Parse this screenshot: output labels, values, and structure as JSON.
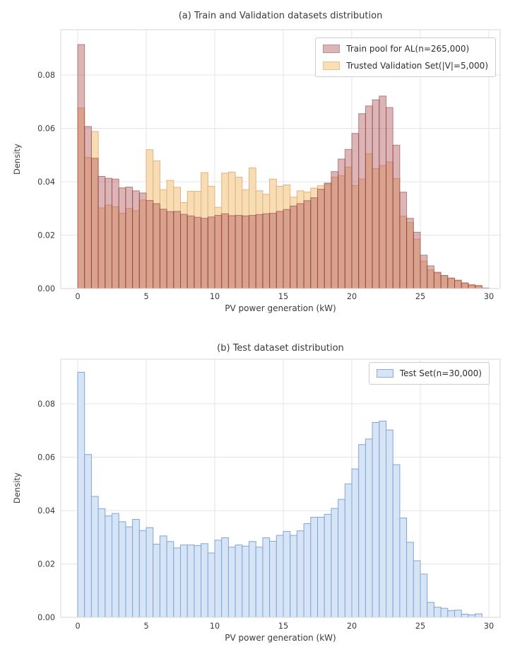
{
  "page": {
    "background": "#ffffff",
    "text_color": "#3a3a3a",
    "grid_color": "#e4e4e4",
    "border_color": "#d7d7d7"
  },
  "chart_data": [
    {
      "type": "bar",
      "subtype": "histogram",
      "title": "(a) Train and Validation datasets distribution",
      "xlabel": "PV power generation (kW)",
      "ylabel": "Density",
      "x_ticks": [
        0,
        5,
        10,
        15,
        20,
        25,
        30
      ],
      "y_ticks": [
        {
          "label": "0.00",
          "value": 0
        },
        {
          "label": "0.02",
          "value": 0.02
        },
        {
          "label": "0.04",
          "value": 0.04
        },
        {
          "label": "0.06",
          "value": 0.06
        },
        {
          "label": "0.08",
          "value": 0.08
        }
      ],
      "xlim": [
        -1.2,
        30.8
      ],
      "ylim": [
        0,
        0.097
      ],
      "grid": true,
      "legend_position": "upper right",
      "bin_start": 0,
      "bin_width": 0.5,
      "series": [
        {
          "name": "Train pool for AL(n=265,000)",
          "bar_fill": "rgba(178,90,95,0.45)",
          "bar_edge": "rgba(140,50,55,0.55)",
          "swatch_fill": "#dcb5b7",
          "swatch_edge": "#c18e92",
          "values": [
            0.0914,
            0.0607,
            0.0488,
            0.042,
            0.0413,
            0.041,
            0.0377,
            0.038,
            0.0366,
            0.0358,
            0.033,
            0.0318,
            0.0297,
            0.0288,
            0.0289,
            0.0278,
            0.0272,
            0.0267,
            0.0263,
            0.0268,
            0.0274,
            0.028,
            0.0273,
            0.0274,
            0.0272,
            0.0274,
            0.0277,
            0.028,
            0.0282,
            0.0289,
            0.0296,
            0.0309,
            0.0318,
            0.0329,
            0.034,
            0.0372,
            0.0395,
            0.0438,
            0.0485,
            0.0521,
            0.0581,
            0.0655,
            0.0684,
            0.0707,
            0.0721,
            0.0678,
            0.0537,
            0.0361,
            0.0263,
            0.0211,
            0.0125,
            0.0085,
            0.0061,
            0.0049,
            0.0038,
            0.003,
            0.002,
            0.0013,
            0.001,
            0.0002
          ]
        },
        {
          "name": "Trusted Validation Set(|V|=5,000)",
          "bar_fill": "#f7ddb3",
          "bar_edge": "#e6b17e",
          "swatch_fill": "#f8dfb6",
          "swatch_edge": "#e9c18c",
          "values": [
            0.0676,
            0.0491,
            0.0588,
            0.0302,
            0.0313,
            0.0306,
            0.0282,
            0.03,
            0.0292,
            0.0332,
            0.052,
            0.0478,
            0.037,
            0.0405,
            0.0379,
            0.0322,
            0.0364,
            0.0364,
            0.0434,
            0.0383,
            0.0304,
            0.0432,
            0.0436,
            0.0417,
            0.037,
            0.0452,
            0.0366,
            0.0353,
            0.041,
            0.0383,
            0.0388,
            0.0342,
            0.0366,
            0.0361,
            0.0376,
            0.0385,
            0.0392,
            0.0417,
            0.0423,
            0.0455,
            0.0386,
            0.041,
            0.0505,
            0.0449,
            0.0461,
            0.0474,
            0.0412,
            0.0271,
            0.0247,
            0.0185,
            0.0103,
            0.007,
            0.0058,
            0.0048,
            0.004,
            0.0032,
            0.0022,
            0.0015,
            0.0012,
            0
          ]
        }
      ]
    },
    {
      "type": "bar",
      "subtype": "histogram",
      "title": "(b) Test dataset distribution",
      "xlabel": "PV power generation (kW)",
      "ylabel": "Density",
      "x_ticks": [
        0,
        5,
        10,
        15,
        20,
        25,
        30
      ],
      "y_ticks": [
        {
          "label": "0.00",
          "value": 0
        },
        {
          "label": "0.02",
          "value": 0.02
        },
        {
          "label": "0.04",
          "value": 0.04
        },
        {
          "label": "0.06",
          "value": 0.06
        },
        {
          "label": "0.08",
          "value": 0.08
        }
      ],
      "xlim": [
        -1.2,
        30.8
      ],
      "ylim": [
        0,
        0.0967
      ],
      "grid": true,
      "legend_position": "upper right",
      "bin_start": 0,
      "bin_width": 0.5,
      "series": [
        {
          "name": "Test Set(n=30,000)",
          "bar_fill": "#d6e4f5",
          "bar_edge": "#7fa6d8",
          "swatch_fill": "#d6e4f5",
          "swatch_edge": "#89aedd",
          "values": [
            0.0918,
            0.061,
            0.0453,
            0.0407,
            0.038,
            0.0389,
            0.0358,
            0.0339,
            0.0367,
            0.0325,
            0.0336,
            0.0274,
            0.0305,
            0.0284,
            0.026,
            0.0271,
            0.0271,
            0.0269,
            0.0276,
            0.0241,
            0.0289,
            0.0298,
            0.0263,
            0.0271,
            0.0267,
            0.0284,
            0.0263,
            0.0298,
            0.0285,
            0.0307,
            0.0322,
            0.0307,
            0.0324,
            0.0351,
            0.0375,
            0.0375,
            0.0386,
            0.0408,
            0.0442,
            0.05,
            0.0556,
            0.0647,
            0.0668,
            0.073,
            0.0735,
            0.0702,
            0.0572,
            0.0372,
            0.0281,
            0.0212,
            0.0162,
            0.0056,
            0.0038,
            0.0034,
            0.0025,
            0.0027,
            0.0012,
            0.0009,
            0.0013,
            0
          ]
        }
      ]
    }
  ]
}
